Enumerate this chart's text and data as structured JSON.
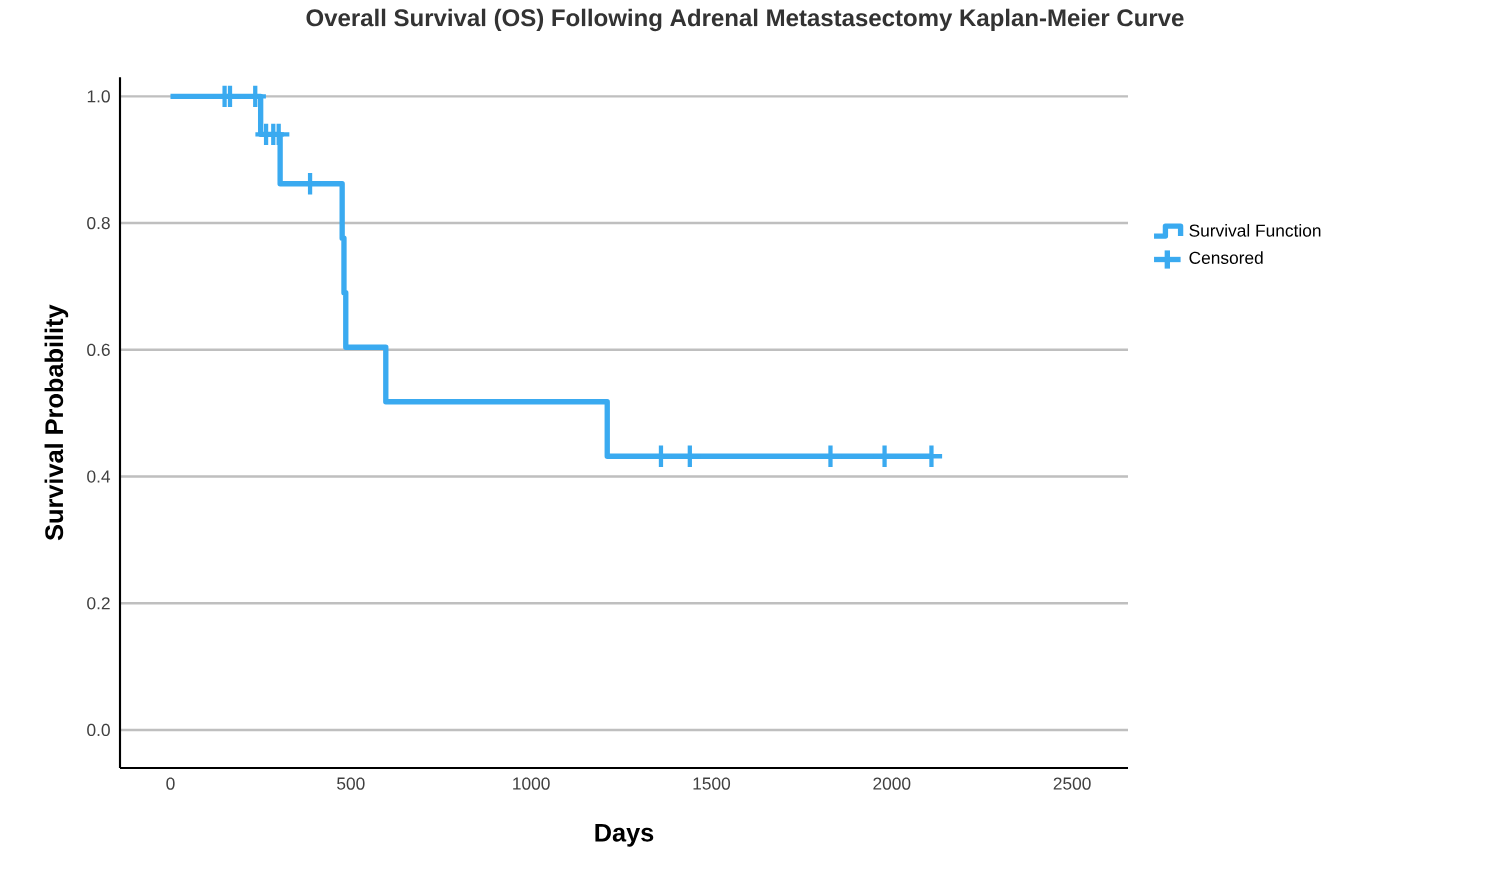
{
  "chart_data": {
    "type": "step",
    "title": "Overall Survival (OS) Following Adrenal Metastasectomy Kaplan-Meier Curve",
    "xlabel": "Days",
    "ylabel": "Survival Probability",
    "series": [
      {
        "name": "Survival Function",
        "color": "#3aaaf0",
        "x": [
          0,
          250,
          304,
          476,
          481,
          486,
          597,
          1211,
          2110
        ],
        "values": [
          1.0,
          0.94,
          0.862,
          0.776,
          0.69,
          0.604,
          0.518,
          0.432,
          0.432
        ]
      },
      {
        "name": "Censored",
        "type": "scatter",
        "color": "#3aaaf0",
        "marker": "cross",
        "x": [
          150,
          165,
          235,
          265,
          285,
          300,
          387,
          1360,
          1440,
          1830,
          1980,
          2110
        ],
        "values": [
          1.0,
          1.0,
          1.0,
          0.94,
          0.94,
          0.94,
          0.862,
          0.432,
          0.432,
          0.432,
          0.432,
          0.432
        ]
      }
    ],
    "xlim": [
      -140,
      2655
    ],
    "ylim": [
      -0.06,
      1.03
    ],
    "xticks": [
      0,
      500,
      1000,
      1500,
      2000,
      2500
    ],
    "yticks": [
      {
        "value": 0,
        "label": "0.0"
      },
      {
        "value": 0.2,
        "label": "0.2"
      },
      {
        "value": 0.4,
        "label": "0.4"
      },
      {
        "value": 0.6,
        "label": "0.6"
      },
      {
        "value": 0.8,
        "label": "0.8"
      },
      {
        "value": 1,
        "label": "1.0"
      }
    ],
    "grid": "y",
    "legend": "right"
  }
}
